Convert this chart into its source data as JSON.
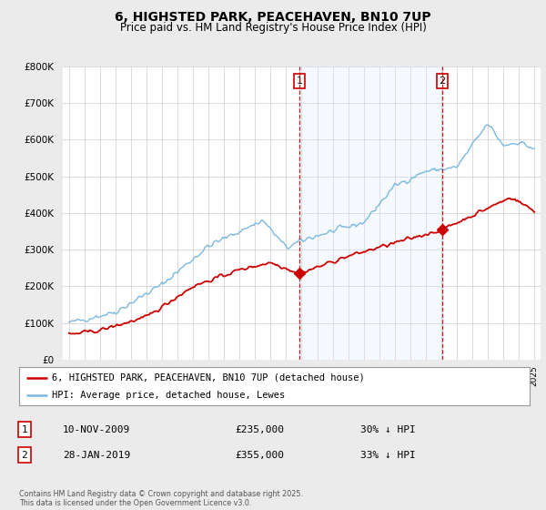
{
  "title": "6, HIGHSTED PARK, PEACEHAVEN, BN10 7UP",
  "subtitle": "Price paid vs. HM Land Registry's House Price Index (HPI)",
  "legend_line1": "6, HIGHSTED PARK, PEACEHAVEN, BN10 7UP (detached house)",
  "legend_line2": "HPI: Average price, detached house, Lewes",
  "transaction1_label": "1",
  "transaction1_date": "10-NOV-2009",
  "transaction1_price": "£235,000",
  "transaction1_hpi": "30% ↓ HPI",
  "transaction2_label": "2",
  "transaction2_date": "28-JAN-2019",
  "transaction2_price": "£355,000",
  "transaction2_hpi": "33% ↓ HPI",
  "vline1_x": 2009.86,
  "vline2_x": 2019.07,
  "hpi_color": "#7ab8e0",
  "price_color": "#cc0000",
  "vline_color": "#cc0000",
  "shade_color": "#ddeeff",
  "background_color": "#ebebeb",
  "plot_bg_color": "#ffffff",
  "footnote": "Contains HM Land Registry data © Crown copyright and database right 2025.\nThis data is licensed under the Open Government Licence v3.0.",
  "ylim": [
    0,
    800000
  ],
  "yticks": [
    0,
    100000,
    200000,
    300000,
    400000,
    500000,
    600000,
    700000,
    800000
  ],
  "xmin": 1994.6,
  "xmax": 2025.4,
  "transaction1_year": 2009.86,
  "transaction1_price_val": 235000,
  "transaction2_year": 2019.07,
  "transaction2_price_val": 355000
}
